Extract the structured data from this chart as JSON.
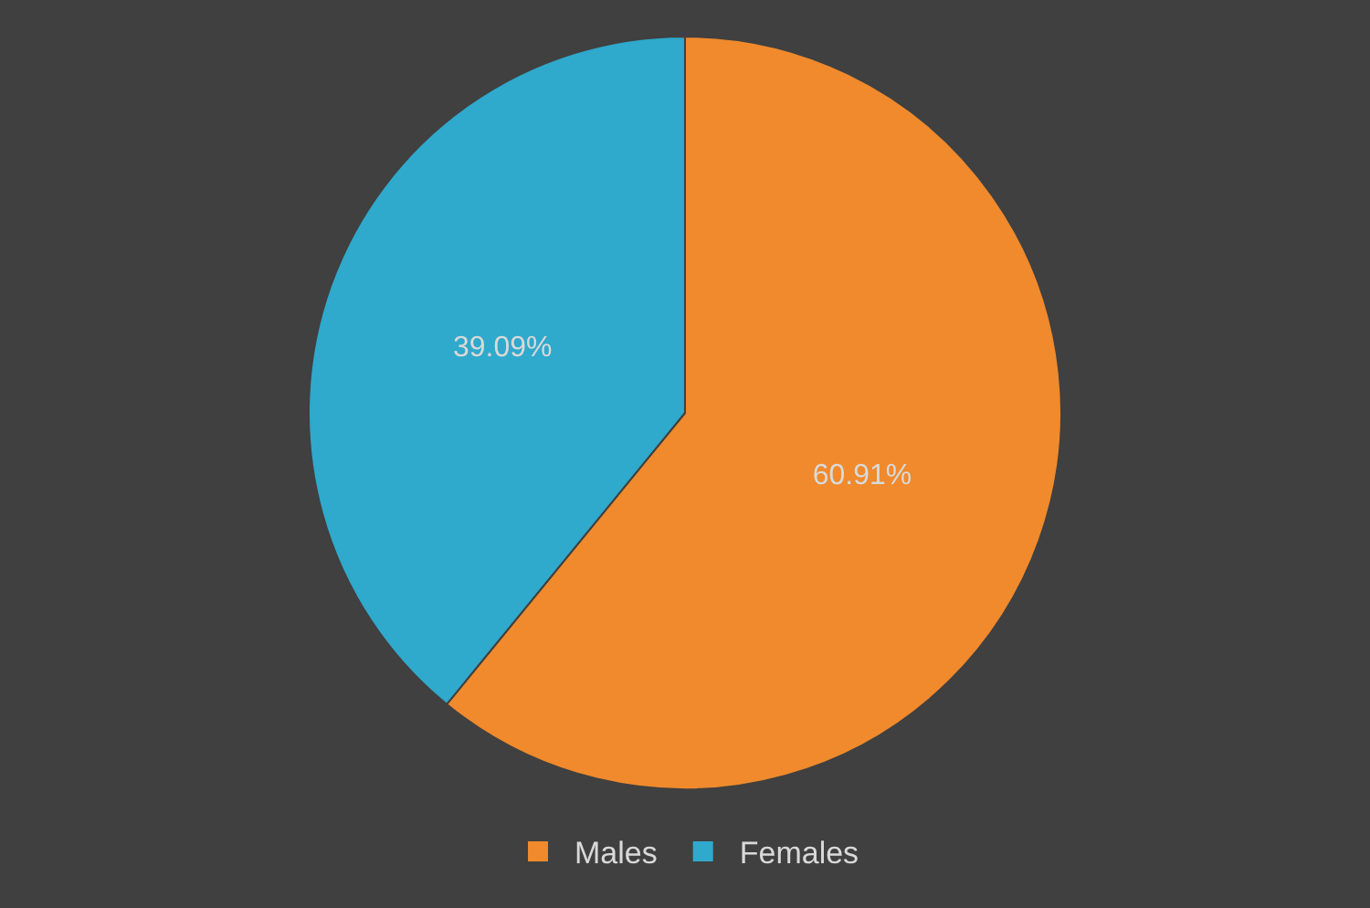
{
  "chart_data": {
    "type": "pie",
    "categories": [
      "Males",
      "Females"
    ],
    "values": [
      60.91,
      39.09
    ],
    "colors": [
      "#f08a2c",
      "#2fa9cc"
    ],
    "value_labels": [
      "60.91%",
      "39.09%"
    ],
    "legend": "bottom"
  }
}
